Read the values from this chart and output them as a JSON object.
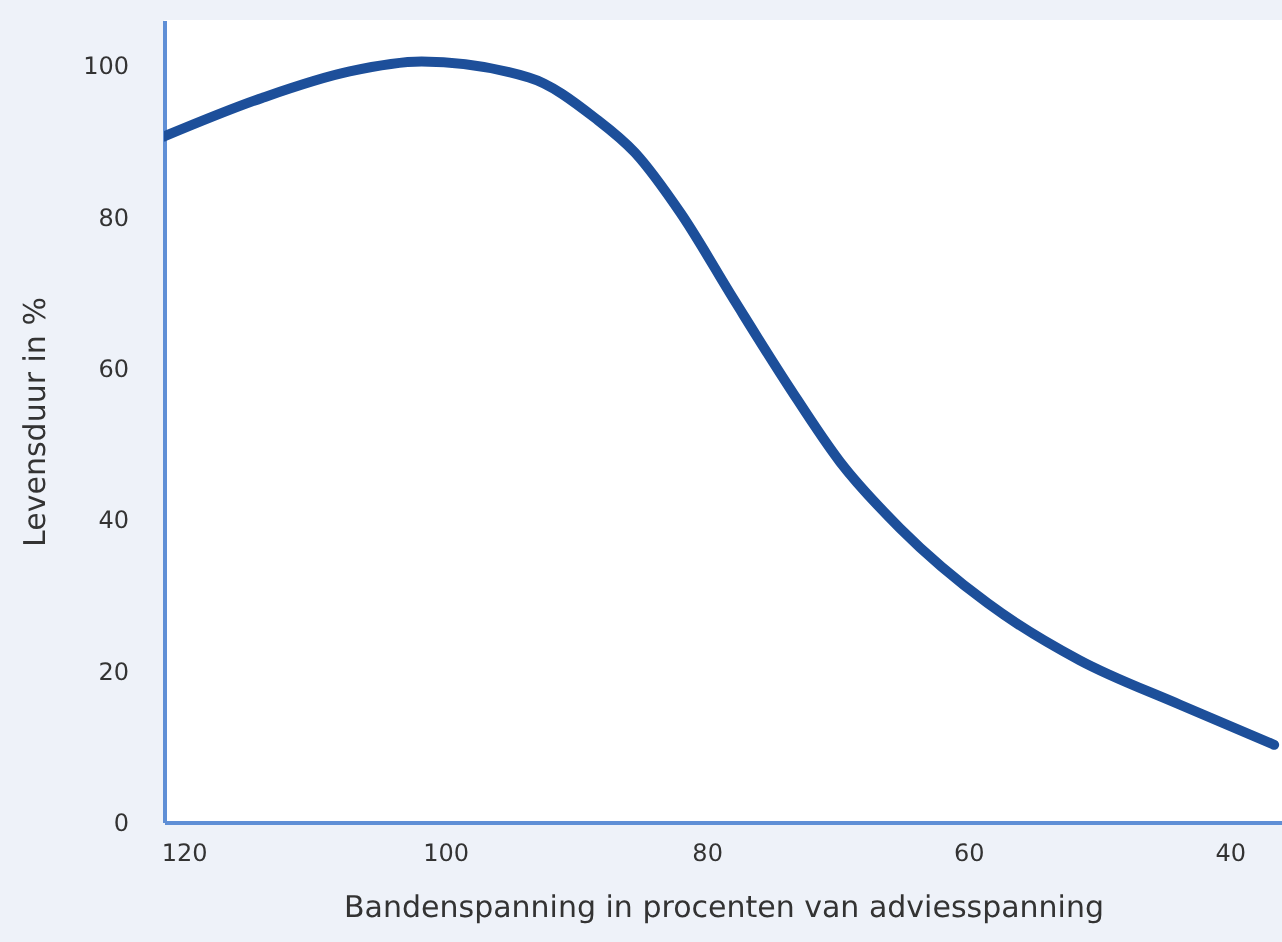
{
  "chart_data": {
    "type": "line",
    "xlabel": "Bandenspanning in procenten van adviesspanning",
    "ylabel": "Levensduur in %",
    "x": [
      121.5,
      114,
      107.3,
      101.8,
      93.6,
      88.5,
      85.5,
      82,
      77.9,
      73.7,
      69.8,
      65.2,
      58.5,
      51.5,
      43.8,
      36.6
    ],
    "series": [
      {
        "color": "#1d4f9a",
        "values": [
          90.6,
          95.7,
          99.2,
          100.5,
          98.4,
          93,
          88.5,
          80.5,
          69,
          57.5,
          47.6,
          38.8,
          28.9,
          21.4,
          15.5,
          10.2
        ]
      }
    ],
    "xlim": [
      121.5,
      36
    ],
    "ylim": [
      0,
      106
    ],
    "xticks": [
      120,
      100,
      80,
      60,
      40
    ],
    "yticks": [
      0,
      20,
      40,
      60,
      80,
      100
    ],
    "grid": false,
    "marker": "none",
    "line_style": "solid"
  }
}
